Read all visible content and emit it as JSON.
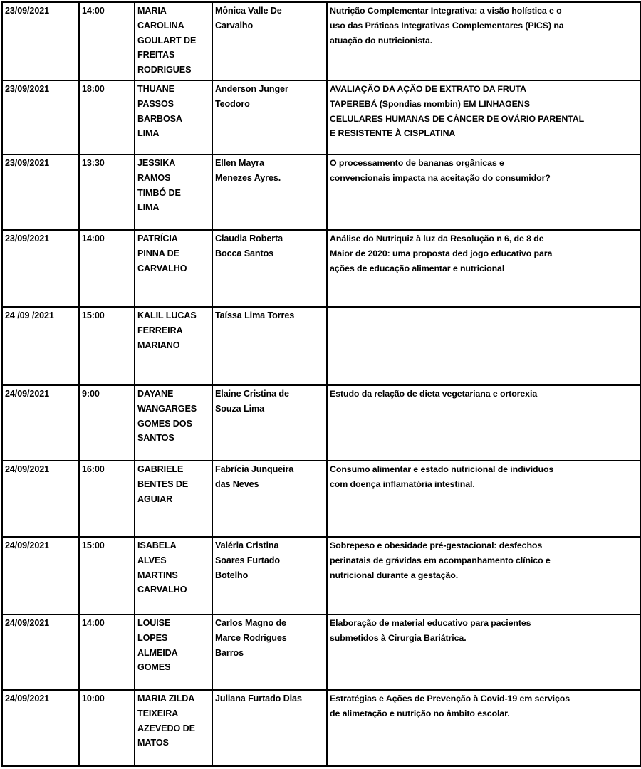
{
  "rows": [
    {
      "date": "23/09/2021",
      "time": "14:00",
      "student": "MARIA\nCAROLINA\nGOULART DE\nFREITAS\nRODRIGUES",
      "advisor": "Mônica Valle De\nCarvalho",
      "title": "Nutrição Complementar Integrativa: a visão holística e o\nuso das Práticas Integrativas Complementares (PICS) na\natuação do nutricionista."
    },
    {
      "date": "23/09/2021",
      "time": "18:00",
      "student": "THUANE\nPASSOS\nBARBOSA\nLIMA",
      "advisor": "Anderson Junger\nTeodoro",
      "title": "AVALIAÇÃO DA AÇÃO DE EXTRATO DA FRUTA\nTAPEREBÁ (Spondias mombin) EM LINHAGENS\nCELULARES HUMANAS DE CÂNCER DE OVÁRIO PARENTAL\nE RESISTENTE À CISPLATINA"
    },
    {
      "date": "23/09/2021",
      "time": "13:30",
      "student": "JESSIKA\nRAMOS\nTIMBÓ DE\nLIMA",
      "advisor": "Ellen Mayra\nMenezes Ayres.",
      "title": "O processamento de bananas orgânicas e\nconvencionais impacta na aceitação do consumidor?"
    },
    {
      "date": "23/09/2021",
      "time": "14:00",
      "student": "PATRÍCIA\nPINNA DE\nCARVALHO",
      "advisor": "Claudia Roberta\nBocca Santos",
      "title": "Análise do Nutriquiz à luz da Resolução n 6, de 8 de\nMaior de 2020: uma proposta ded jogo educativo para\nações de educação alimentar e nutricional"
    },
    {
      "date": "24 /09 /2021",
      "time": "15:00",
      "student": "KALIL LUCAS\nFERREIRA\nMARIANO",
      "advisor": "Taíssa Lima Torres",
      "title": ""
    },
    {
      "date": "24/09/2021",
      "time": "9:00",
      "student": "DAYANE\nWANGARGES\nGOMES DOS\nSANTOS",
      "advisor": "Elaine Cristina de\nSouza Lima",
      "title": "Estudo da relação de dieta vegetariana e ortorexia"
    },
    {
      "date": "24/09/2021",
      "time": "16:00",
      "student": "GABRIELE\nBENTES DE\nAGUIAR",
      "advisor": "Fabrícia Junqueira\ndas Neves",
      "title": "Consumo alimentar e estado nutricional de indivíduos\ncom doença inflamatória intestinal."
    },
    {
      "date": "24/09/2021",
      "time": "15:00",
      "student": "ISABELA\nALVES\nMARTINS\nCARVALHO",
      "advisor": "Valéria Cristina\nSoares Furtado\nBotelho",
      "title": "Sobrepeso e obesidade pré-gestacional: desfechos\nperinatais de grávidas em acompanhamento clínico e\nnutricional durante a gestação."
    },
    {
      "date": "24/09/2021",
      "time": "14:00",
      "student": "LOUISE\nLOPES\nALMEIDA\nGOMES",
      "advisor": "Carlos Magno de\nMarce Rodrigues\nBarros",
      "title": "Elaboração de material educativo para pacientes\nsubmetidos à Cirurgia Bariátrica."
    },
    {
      "date": "24/09/2021",
      "time": "10:00",
      "student": "MARIA ZILDA\nTEIXEIRA\nAZEVEDO DE\nMATOS",
      "advisor": "Juliana Furtado Dias",
      "title": "Estratégias e Ações de Prevenção à Covid-19 em serviços\nde alimetação e nutrição no âmbito escolar."
    }
  ]
}
